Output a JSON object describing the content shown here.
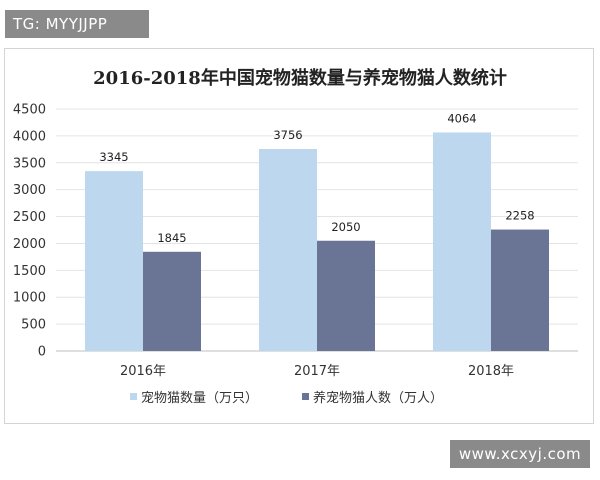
{
  "watermarks": {
    "top": "TG: MYYJJPP",
    "bottom": "www.xcxyj.com"
  },
  "chart_data": {
    "type": "bar",
    "title": "2016-2018年中国宠物猫数量与养宠物猫人数统计",
    "categories": [
      "2016年",
      "2017年",
      "2018年"
    ],
    "series": [
      {
        "name": "宠物猫数量（万只）",
        "values": [
          3345,
          3756,
          4064
        ],
        "color": "#bdd7ee"
      },
      {
        "name": "养宠物猫人数（万人）",
        "values": [
          1845,
          2050,
          2258
        ],
        "color": "#6a7495"
      }
    ],
    "ylim": [
      0,
      4500
    ],
    "yticks": [
      0,
      500,
      1000,
      1500,
      2000,
      2500,
      3000,
      3500,
      4000,
      4500
    ],
    "grid": true,
    "legend": "bottom"
  }
}
